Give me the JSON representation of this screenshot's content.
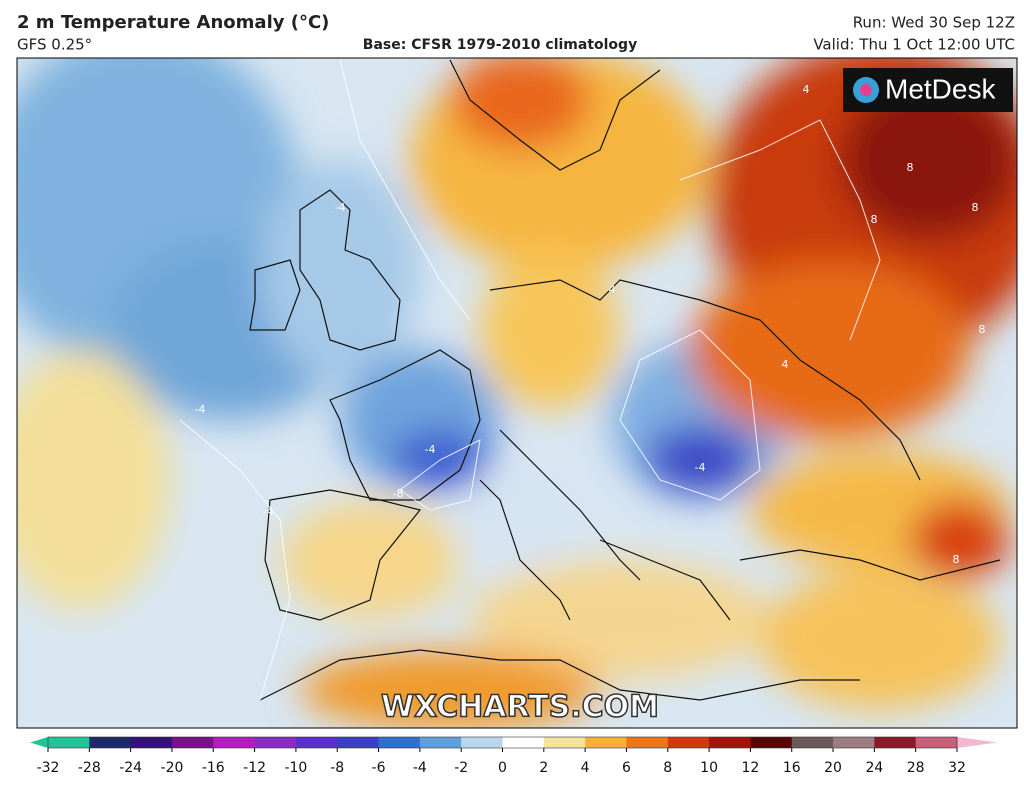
{
  "header": {
    "title": "2 m Temperature Anomaly (°C)",
    "model": "GFS 0.25°",
    "base": "Base: CFSR 1979-2010 climatology",
    "run": "Run: Wed 30 Sep 12Z",
    "valid": "Valid: Thu 1 Oct 12:00 UTC"
  },
  "map": {
    "logo": "MetDesk",
    "watermark": "WXCHARTS.COM",
    "contour_labels": [
      "-4",
      "-4",
      "-4",
      "-8",
      "-4",
      "4",
      "4",
      "8",
      "8",
      "8",
      "8",
      "4",
      "-4",
      "8"
    ]
  },
  "colorbar": {
    "ticks": [
      -32,
      -28,
      -24,
      -20,
      -16,
      -12,
      -10,
      -8,
      -6,
      -4,
      -2,
      0,
      2,
      4,
      6,
      8,
      10,
      12,
      16,
      20,
      24,
      28,
      32
    ],
    "colors": [
      "#1fc597",
      "#1c2a6b",
      "#34107a",
      "#7b118a",
      "#b51cc0",
      "#8b2ac4",
      "#5d2ed0",
      "#3a3fc6",
      "#2f6fd0",
      "#5f9fdc",
      "#b9d6ee",
      "#ffffff",
      "#f6e39b",
      "#f7b235",
      "#ef7616",
      "#d6370e",
      "#a4120a",
      "#5a0606",
      "#6b5a5a",
      "#9e7c84",
      "#8a1a2a",
      "#c8607a",
      "#f3b8cf"
    ]
  }
}
